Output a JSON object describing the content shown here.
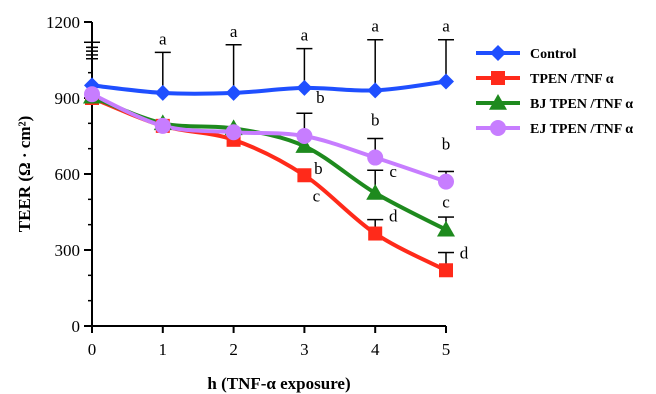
{
  "chart_data": {
    "type": "line",
    "title": "",
    "xlabel": "h (TNF-α exposure)",
    "ylabel": "TEER (Ω · cm²)",
    "x": [
      0,
      1,
      2,
      3,
      4,
      5
    ],
    "xlim": [
      0,
      5
    ],
    "ylim": [
      0,
      1200
    ],
    "yticks": [
      0,
      300,
      600,
      900,
      1200
    ],
    "xticks": [
      0,
      1,
      2,
      3,
      4,
      5
    ],
    "legend_position": "top-right",
    "grid": false,
    "series": [
      {
        "name": "Control",
        "color": "#1f4fff",
        "marker": "diamond",
        "values": [
          950,
          920,
          920,
          940,
          930,
          965
        ],
        "error_up": [
          170,
          160,
          190,
          155,
          200,
          165
        ],
        "letters": [
          "",
          "a",
          "a",
          "a",
          "a",
          "a"
        ]
      },
      {
        "name": "TPEN /TNF α",
        "color": "#ff2a1a",
        "marker": "square",
        "values": [
          900,
          790,
          735,
          595,
          365,
          220
        ],
        "error_up": [
          0,
          0,
          0,
          0,
          55,
          70
        ],
        "letters": [
          "",
          "",
          "",
          "c",
          "d",
          "d"
        ]
      },
      {
        "name": "BJ TPEN /TNF α",
        "color": "#1e8a1e",
        "marker": "triangle",
        "values": [
          905,
          800,
          780,
          710,
          525,
          380
        ],
        "error_up": [
          0,
          0,
          0,
          0,
          90,
          50
        ],
        "letters": [
          "",
          "",
          "",
          "b",
          "c",
          "c"
        ]
      },
      {
        "name": "EJ TPEN /TNF α",
        "color": "#c77dff",
        "marker": "circle",
        "values": [
          915,
          790,
          765,
          750,
          665,
          570
        ],
        "error_up": [
          0,
          0,
          0,
          90,
          75,
          40
        ],
        "letters": [
          "",
          "",
          "",
          "b",
          "b",
          "b"
        ]
      }
    ]
  }
}
